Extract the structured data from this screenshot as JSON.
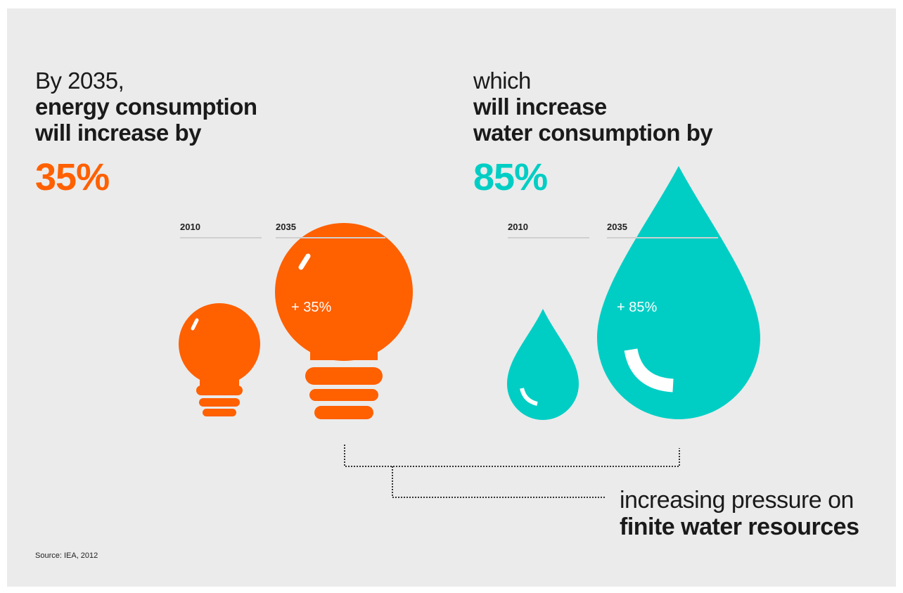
{
  "energy": {
    "line1": "By 2035,",
    "line2": "energy consumption",
    "line3": "will increase by",
    "percent": "35%",
    "year_start": "2010",
    "year_end": "2035",
    "inner_label": "+ 35%",
    "color": "#ff6000"
  },
  "water": {
    "line1": "which",
    "line2": "will increase",
    "line3": "water consumption by",
    "percent": "85%",
    "year_start": "2010",
    "year_end": "2035",
    "inner_label": "+ 85%",
    "color": "#00cec4"
  },
  "conclusion": {
    "line1": "increasing pressure on",
    "line2": "finite water resources"
  },
  "source": "Source: IEA, 2012"
}
